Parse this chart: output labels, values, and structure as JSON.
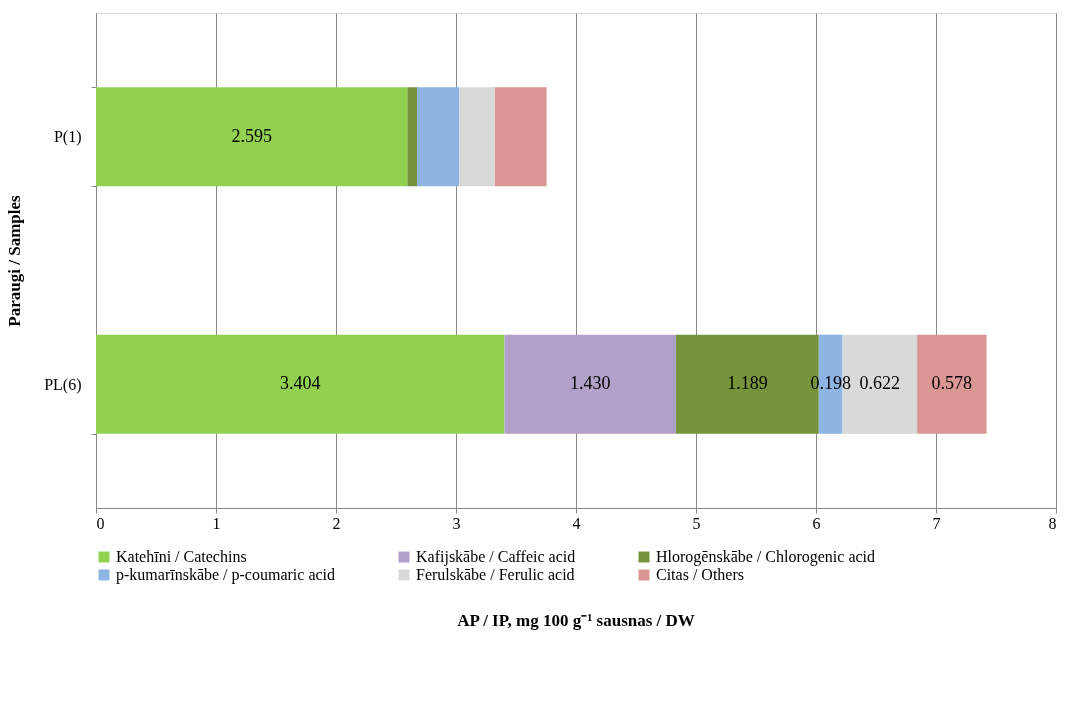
{
  "chart_data": {
    "type": "bar",
    "orientation": "horizontal",
    "stacked": true,
    "xlabel": "AP / IP, mg 100 g⁻¹ sausnas / DW",
    "ylabel": "Paraugi / Samples",
    "categories": [
      "P(1)",
      "PL(6)"
    ],
    "series": [
      {
        "name": "Katehīni / Catechins",
        "color": "#92d050",
        "values": [
          2.595,
          3.404
        ],
        "value_labels": [
          "2.595",
          "3.404"
        ]
      },
      {
        "name": "Kafijskābe / Caffeic acid",
        "color": "#b1a0c7",
        "values": [
          null,
          1.43
        ],
        "value_labels": [
          null,
          "1.430"
        ]
      },
      {
        "name": "Hlorogēnskābe / Chlorogenic acid",
        "color": "#77933c",
        "values": [
          0.08,
          1.189
        ],
        "value_labels": [
          null,
          "1.189"
        ]
      },
      {
        "name": "p-kumarīnskābe / p-coumaric acid",
        "color": "#8db4e2",
        "values": [
          0.35,
          0.198
        ],
        "value_labels": [
          null,
          "0.198"
        ]
      },
      {
        "name": "Ferulskābe / Ferulic acid",
        "color": "#d9d9d9",
        "values": [
          0.3,
          0.622
        ],
        "value_labels": [
          null,
          "0.622"
        ]
      },
      {
        "name": "Citas / Others",
        "color": "#da9694",
        "values": [
          0.43,
          0.578
        ],
        "value_labels": [
          null,
          "0.578"
        ]
      }
    ],
    "xlim": [
      0,
      8
    ],
    "xticks": [
      0,
      1,
      2,
      3,
      4,
      5,
      6,
      7,
      8
    ],
    "grid": "x",
    "legend": "bottom"
  }
}
